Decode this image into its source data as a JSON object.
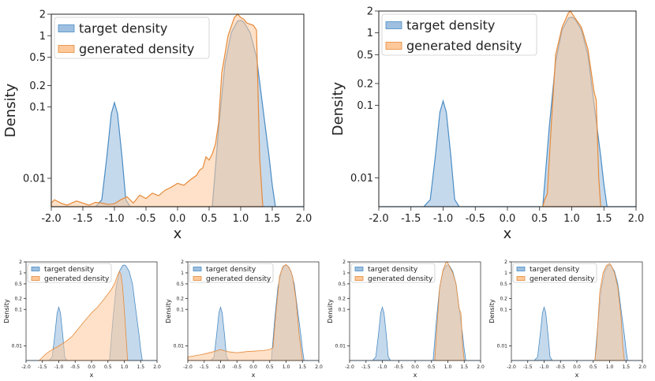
{
  "figure_caption": "",
  "chart_data": [
    {
      "type": "area",
      "panel": "top-left",
      "title": "",
      "xlabel": "x",
      "ylabel": "Density",
      "xlim": [
        -2.0,
        2.0
      ],
      "ylim": [
        0.004,
        2.0
      ],
      "yscale": "log",
      "x_ticks": [
        "-2.0",
        "-1.5",
        "-1.0",
        "-0.5",
        "0.0",
        "0.5",
        "1.0",
        "1.5",
        "2.0"
      ],
      "y_ticks": [
        "0.01",
        "0.1",
        "0.2",
        "0.5",
        "1",
        "2"
      ],
      "legend": {
        "position": "top-left",
        "entries": [
          "target density",
          "generated density"
        ]
      },
      "series": [
        {
          "name": "target density",
          "color": "#9ebfe0",
          "edge": "#4a8cc4",
          "x": [
            -2.0,
            -1.3,
            -1.2,
            -1.12,
            -1.05,
            -1.0,
            -0.95,
            -0.88,
            -0.82,
            -0.75,
            0.0,
            0.55,
            0.65,
            0.75,
            0.85,
            0.95,
            1.0,
            1.05,
            1.15,
            1.25,
            1.35,
            1.45,
            1.5,
            1.55,
            2.0
          ],
          "values": [
            0.004,
            0.004,
            0.005,
            0.02,
            0.08,
            0.115,
            0.08,
            0.02,
            0.005,
            0.004,
            0.004,
            0.004,
            0.05,
            0.4,
            1.1,
            1.6,
            1.65,
            1.55,
            1.1,
            0.5,
            0.1,
            0.02,
            0.008,
            0.004,
            0.004
          ]
        },
        {
          "name": "generated density",
          "color": "#fdc89a",
          "edge": "#e58a3a",
          "x": [
            -2.0,
            -1.95,
            -1.85,
            -1.75,
            -1.6,
            -1.5,
            -1.4,
            -1.3,
            -1.2,
            -1.1,
            -1.0,
            -0.9,
            -0.8,
            -0.7,
            -0.6,
            -0.5,
            -0.4,
            -0.3,
            -0.2,
            -0.1,
            0.0,
            0.1,
            0.2,
            0.3,
            0.35,
            0.4,
            0.45,
            0.5,
            0.55,
            0.6,
            0.65,
            0.7,
            0.8,
            0.9,
            0.95,
            1.0,
            1.05,
            1.1,
            1.2,
            1.25,
            1.3,
            1.35
          ],
          "values": [
            0.0045,
            0.005,
            0.0045,
            0.0042,
            0.0048,
            0.0045,
            0.0042,
            0.0046,
            0.0045,
            0.0043,
            0.0044,
            0.005,
            0.0055,
            0.0045,
            0.0058,
            0.0052,
            0.0062,
            0.0057,
            0.0068,
            0.0075,
            0.0085,
            0.008,
            0.0095,
            0.011,
            0.013,
            0.014,
            0.02,
            0.018,
            0.022,
            0.03,
            0.06,
            0.3,
            1.0,
            1.8,
            2.0,
            1.8,
            1.7,
            1.5,
            1.4,
            1.2,
            0.02,
            0.004
          ]
        }
      ]
    },
    {
      "type": "area",
      "panel": "top-right",
      "title": "",
      "xlabel": "x",
      "ylabel": "Density",
      "xlim": [
        -2.0,
        2.0
      ],
      "ylim": [
        0.004,
        2.0
      ],
      "yscale": "log",
      "x_ticks": [
        "-2.0",
        "-1.5",
        "-1.0",
        "-0.5",
        "0.0",
        "0.5",
        "1.0",
        "1.5",
        "2.0"
      ],
      "y_ticks": [
        "0.01",
        "0.1",
        "0.2",
        "0.5",
        "1",
        "2"
      ],
      "legend": {
        "position": "top-left",
        "entries": [
          "target density",
          "generated density"
        ]
      },
      "series": [
        {
          "name": "target density",
          "color": "#9ebfe0",
          "edge": "#4a8cc4",
          "x": [
            -2.0,
            -1.3,
            -1.2,
            -1.12,
            -1.05,
            -1.0,
            -0.95,
            -0.88,
            -0.82,
            -0.75,
            0.0,
            0.55,
            0.65,
            0.75,
            0.85,
            0.95,
            1.0,
            1.05,
            1.15,
            1.25,
            1.35,
            1.45,
            1.5,
            1.55,
            2.0
          ],
          "values": [
            0.004,
            0.004,
            0.005,
            0.02,
            0.08,
            0.115,
            0.08,
            0.02,
            0.005,
            0.004,
            0.004,
            0.004,
            0.05,
            0.4,
            1.1,
            1.6,
            1.65,
            1.55,
            1.1,
            0.5,
            0.1,
            0.02,
            0.008,
            0.004,
            0.004
          ]
        },
        {
          "name": "generated density",
          "color": "#fdc89a",
          "edge": "#e58a3a",
          "x": [
            0.55,
            0.58,
            0.62,
            0.68,
            0.75,
            0.85,
            0.95,
            0.98,
            1.05,
            1.15,
            1.25,
            1.35,
            1.38,
            1.42,
            1.45
          ],
          "values": [
            0.004,
            0.005,
            0.006,
            0.05,
            0.5,
            1.2,
            1.9,
            2.0,
            1.6,
            1.2,
            0.6,
            0.15,
            0.12,
            0.01,
            0.004
          ]
        }
      ]
    },
    {
      "type": "area",
      "panel": "bottom-1",
      "title": "",
      "xlabel": "x",
      "ylabel": "Density",
      "xlim": [
        -2.0,
        2.0
      ],
      "ylim": [
        0.004,
        2.0
      ],
      "yscale": "log",
      "x_ticks": [
        "-2.0",
        "-1.5",
        "-1.0",
        "-0.5",
        "0.0",
        "0.5",
        "1.0",
        "1.5",
        "2.0"
      ],
      "y_ticks": [
        "0.01",
        "0.1",
        "0.2",
        "0.5",
        "1",
        "2"
      ],
      "legend": {
        "position": "top-left",
        "entries": [
          "target density",
          "generated density"
        ]
      },
      "series": [
        {
          "name": "target density",
          "color": "#9ebfe0",
          "edge": "#4a8cc4",
          "x": [
            -2.0,
            -1.3,
            -1.2,
            -1.12,
            -1.05,
            -1.0,
            -0.95,
            -0.88,
            -0.82,
            -0.75,
            0.0,
            0.55,
            0.65,
            0.75,
            0.85,
            0.95,
            1.0,
            1.05,
            1.15,
            1.25,
            1.35,
            1.45,
            1.5,
            1.55,
            2.0
          ],
          "values": [
            0.004,
            0.004,
            0.005,
            0.02,
            0.08,
            0.115,
            0.08,
            0.02,
            0.005,
            0.004,
            0.004,
            0.004,
            0.05,
            0.4,
            1.1,
            1.6,
            1.65,
            1.55,
            1.1,
            0.5,
            0.1,
            0.02,
            0.008,
            0.004,
            0.004
          ]
        },
        {
          "name": "generated density",
          "color": "#fdc89a",
          "edge": "#e58a3a",
          "x": [
            -1.6,
            -1.4,
            -1.2,
            -1.0,
            -0.8,
            -0.6,
            -0.4,
            -0.2,
            0.0,
            0.2,
            0.4,
            0.6,
            0.7,
            0.8,
            0.85,
            0.9,
            0.95,
            1.0,
            1.05,
            1.1
          ],
          "values": [
            0.004,
            0.006,
            0.008,
            0.01,
            0.013,
            0.018,
            0.03,
            0.05,
            0.08,
            0.12,
            0.2,
            0.35,
            0.5,
            0.9,
            1.1,
            0.9,
            0.4,
            0.1,
            0.02,
            0.004
          ]
        }
      ]
    },
    {
      "type": "area",
      "panel": "bottom-2",
      "title": "",
      "xlabel": "x",
      "ylabel": "Density",
      "xlim": [
        -2.0,
        2.0
      ],
      "ylim": [
        0.004,
        2.0
      ],
      "yscale": "log",
      "x_ticks": [
        "-2.0",
        "-1.5",
        "-1.0",
        "-0.5",
        "0.0",
        "0.5",
        "1.0",
        "1.5",
        "2.0"
      ],
      "y_ticks": [
        "0.01",
        "0.1",
        "0.2",
        "0.5",
        "1",
        "2"
      ],
      "legend": {
        "position": "top-left",
        "entries": [
          "target density",
          "generated density"
        ]
      },
      "series": [
        {
          "name": "target density",
          "color": "#9ebfe0",
          "edge": "#4a8cc4",
          "x": [
            -2.0,
            -1.3,
            -1.2,
            -1.12,
            -1.05,
            -1.0,
            -0.95,
            -0.88,
            -0.82,
            -0.75,
            0.0,
            0.55,
            0.65,
            0.75,
            0.85,
            0.95,
            1.0,
            1.05,
            1.15,
            1.25,
            1.35,
            1.45,
            1.5,
            1.55,
            2.0
          ],
          "values": [
            0.004,
            0.004,
            0.005,
            0.02,
            0.08,
            0.115,
            0.08,
            0.02,
            0.005,
            0.004,
            0.004,
            0.004,
            0.05,
            0.4,
            1.1,
            1.6,
            1.65,
            1.55,
            1.1,
            0.5,
            0.1,
            0.02,
            0.008,
            0.004,
            0.004
          ]
        },
        {
          "name": "generated density",
          "color": "#fdc89a",
          "edge": "#e58a3a",
          "x": [
            -2.0,
            -1.5,
            -1.2,
            -1.0,
            -0.8,
            -0.5,
            -0.2,
            0.0,
            0.3,
            0.5,
            0.6,
            0.7,
            0.8,
            0.9,
            1.0,
            1.1,
            1.2,
            1.3,
            1.4,
            1.5
          ],
          "values": [
            0.005,
            0.006,
            0.007,
            0.008,
            0.007,
            0.0065,
            0.007,
            0.0072,
            0.0075,
            0.008,
            0.009,
            0.1,
            0.8,
            1.5,
            1.7,
            1.4,
            0.8,
            0.2,
            0.02,
            0.004
          ]
        }
      ]
    },
    {
      "type": "area",
      "panel": "bottom-3",
      "title": "",
      "xlabel": "x",
      "ylabel": "Density",
      "xlim": [
        -2.0,
        2.0
      ],
      "ylim": [
        0.004,
        2.0
      ],
      "yscale": "log",
      "x_ticks": [
        "-2.0",
        "-1.5",
        "-1.0",
        "-0.5",
        "0.0",
        "0.5",
        "1.0",
        "1.5",
        "2.0"
      ],
      "y_ticks": [
        "0.01",
        "0.1",
        "0.2",
        "0.5",
        "1",
        "2"
      ],
      "legend": {
        "position": "top-left",
        "entries": [
          "target density",
          "generated density"
        ]
      },
      "series": [
        {
          "name": "target density",
          "color": "#9ebfe0",
          "edge": "#4a8cc4",
          "x": [
            -2.0,
            -1.3,
            -1.2,
            -1.12,
            -1.05,
            -1.0,
            -0.95,
            -0.88,
            -0.82,
            -0.75,
            0.0,
            0.55,
            0.65,
            0.75,
            0.85,
            0.95,
            1.0,
            1.05,
            1.15,
            1.25,
            1.35,
            1.45,
            1.5,
            1.55,
            2.0
          ],
          "values": [
            0.004,
            0.004,
            0.005,
            0.02,
            0.08,
            0.115,
            0.08,
            0.02,
            0.005,
            0.004,
            0.004,
            0.004,
            0.05,
            0.4,
            1.1,
            1.6,
            1.65,
            1.55,
            1.1,
            0.5,
            0.1,
            0.02,
            0.008,
            0.004,
            0.004
          ]
        },
        {
          "name": "generated density",
          "color": "#fdc89a",
          "edge": "#e58a3a",
          "x": [
            0.6,
            0.65,
            0.75,
            0.85,
            0.95,
            1.0,
            1.05,
            1.15,
            1.25,
            1.35,
            1.4,
            1.45,
            1.5
          ],
          "values": [
            0.004,
            0.02,
            0.4,
            1.2,
            2.0,
            1.9,
            1.5,
            1.0,
            0.5,
            0.1,
            0.08,
            0.01,
            0.004
          ]
        }
      ]
    },
    {
      "type": "area",
      "panel": "bottom-4",
      "title": "",
      "xlabel": "x",
      "ylabel": "Density",
      "xlim": [
        -2.0,
        2.0
      ],
      "ylim": [
        0.004,
        2.0
      ],
      "yscale": "log",
      "x_ticks": [
        "-2.0",
        "-1.5",
        "-1.0",
        "-0.5",
        "0.0",
        "0.5",
        "1.0",
        "1.5",
        "2.0"
      ],
      "y_ticks": [
        "0.01",
        "0.1",
        "0.2",
        "0.5",
        "1",
        "2"
      ],
      "legend": {
        "position": "top-left",
        "entries": [
          "target density",
          "generated density"
        ]
      },
      "series": [
        {
          "name": "target density",
          "color": "#9ebfe0",
          "edge": "#4a8cc4",
          "x": [
            -2.0,
            -1.3,
            -1.2,
            -1.12,
            -1.05,
            -1.0,
            -0.95,
            -0.88,
            -0.82,
            -0.75,
            0.0,
            0.55,
            0.65,
            0.75,
            0.85,
            0.95,
            1.0,
            1.05,
            1.15,
            1.25,
            1.35,
            1.45,
            1.5,
            1.55,
            2.0
          ],
          "values": [
            0.004,
            0.004,
            0.005,
            0.02,
            0.08,
            0.115,
            0.08,
            0.02,
            0.005,
            0.004,
            0.004,
            0.004,
            0.05,
            0.4,
            1.1,
            1.6,
            1.65,
            1.55,
            1.1,
            0.5,
            0.1,
            0.02,
            0.008,
            0.004,
            0.004
          ]
        },
        {
          "name": "generated density",
          "color": "#fdc89a",
          "edge": "#e58a3a",
          "x": [
            0.55,
            0.6,
            0.7,
            0.8,
            0.9,
            1.0,
            1.05,
            1.15,
            1.25,
            1.35,
            1.4,
            1.45
          ],
          "values": [
            0.004,
            0.01,
            0.3,
            1.0,
            1.6,
            1.8,
            1.6,
            1.0,
            0.4,
            0.06,
            0.01,
            0.004
          ]
        }
      ]
    }
  ]
}
